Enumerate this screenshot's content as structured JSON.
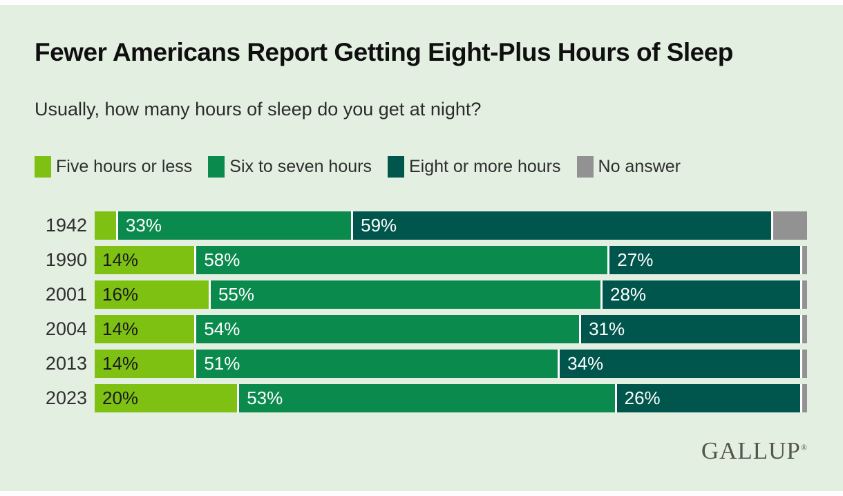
{
  "page": {
    "background_color": "#e3f0e1",
    "frame_color": "#ffffff"
  },
  "chart_data": {
    "type": "bar",
    "orientation": "horizontal",
    "stacked": true,
    "title": "Fewer Americans Report Getting Eight-Plus Hours of Sleep",
    "subtitle": "Usually, how many hours of sleep do you get at night?",
    "legend_position": "top",
    "grid": false,
    "xlim": [
      0,
      100
    ],
    "unit": "%",
    "categories": [
      "1942",
      "1990",
      "2001",
      "2004",
      "2013",
      "2023"
    ],
    "series": [
      {
        "name": "Five hours or less",
        "color": "#7ec113",
        "text_color": "#1a1a1a",
        "values": [
          3,
          14,
          16,
          14,
          14,
          20
        ]
      },
      {
        "name": "Six to seven hours",
        "color": "#0b8a4d",
        "text_color": "#ffffff",
        "values": [
          33,
          58,
          55,
          54,
          51,
          53
        ]
      },
      {
        "name": "Eight or more hours",
        "color": "#00564c",
        "text_color": "#ffffff",
        "values": [
          59,
          27,
          28,
          31,
          34,
          26
        ]
      },
      {
        "name": "No answer",
        "color": "#929292",
        "text_color": "#ffffff",
        "values": [
          5,
          1,
          1,
          1,
          1,
          1
        ]
      }
    ],
    "segment_labels": [
      [
        "",
        "33%",
        "59%",
        ""
      ],
      [
        "14%",
        "58%",
        "27%",
        ""
      ],
      [
        "16%",
        "55%",
        "28%",
        ""
      ],
      [
        "14%",
        "54%",
        "31%",
        ""
      ],
      [
        "14%",
        "51%",
        "34%",
        ""
      ],
      [
        "20%",
        "53%",
        "26%",
        ""
      ]
    ],
    "separator_color": "#ffffff"
  },
  "branding": {
    "logo_text": "GALLUP",
    "registered_mark": "®"
  }
}
